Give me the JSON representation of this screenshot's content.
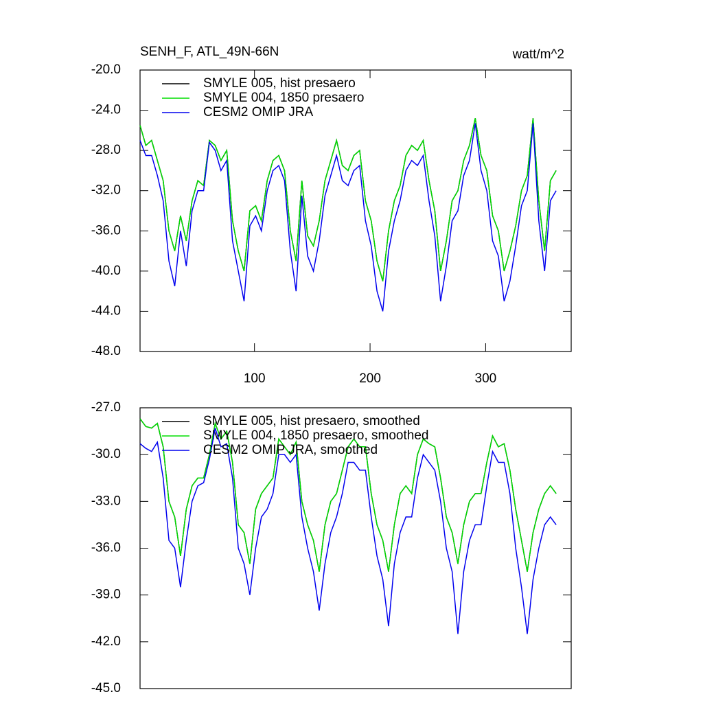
{
  "chart_data": [
    {
      "type": "line",
      "title": "SENH_F, ATL_49N-66N",
      "units": "watt/m^2",
      "xlim": [
        1,
        374
      ],
      "xticks": [
        100,
        200,
        300
      ],
      "ylim": [
        -48,
        -20
      ],
      "yticks": [
        {
          "value": -20,
          "label": "-20.0"
        },
        {
          "value": -24,
          "label": "-24.0"
        },
        {
          "value": -28,
          "label": "-28.0"
        },
        {
          "value": -32,
          "label": "-32.0"
        },
        {
          "value": -36,
          "label": "-36.0"
        },
        {
          "value": -40,
          "label": "-40.0"
        },
        {
          "value": -44,
          "label": "-44.0"
        },
        {
          "value": -48,
          "label": "-48.0"
        }
      ],
      "x": [
        1,
        6,
        11,
        16,
        21,
        26,
        31,
        36,
        41,
        46,
        51,
        56,
        61,
        66,
        71,
        76,
        81,
        86,
        91,
        96,
        101,
        106,
        111,
        116,
        121,
        126,
        131,
        136,
        141,
        146,
        151,
        156,
        161,
        166,
        171,
        176,
        181,
        186,
        191,
        196,
        201,
        206,
        211,
        216,
        221,
        226,
        231,
        236,
        241,
        246,
        251,
        256,
        261,
        266,
        271,
        276,
        281,
        286,
        291,
        296,
        301,
        306,
        311,
        316,
        321,
        326,
        331,
        336,
        341,
        346,
        351,
        356,
        361
      ],
      "series": [
        {
          "name": "SMYLE 005, hist presaero",
          "color": "#000000",
          "values": [
            -25.5,
            -27.5,
            -27.0,
            -29.0,
            -31.0,
            -36.0,
            -38.0,
            -34.5,
            -37.0,
            -33.0,
            -31.0,
            -31.5,
            -27.0,
            -27.5,
            -29.0,
            -28.0,
            -35.0,
            -38.0,
            -40.0,
            -34.0,
            -33.5,
            -35.0,
            -31.0,
            -29.0,
            -28.5,
            -30.0,
            -36.0,
            -39.0,
            -31.0,
            -36.5,
            -37.5,
            -35.0,
            -31.0,
            -29.0,
            -27.0,
            -29.5,
            -30.0,
            -28.5,
            -28.0,
            -33.0,
            -35.0,
            -39.0,
            -41.0,
            -36.0,
            -33.0,
            -31.5,
            -28.5,
            -27.5,
            -28.0,
            -27.0,
            -31.0,
            -34.0,
            -40.0,
            -37.0,
            -33.0,
            -32.0,
            -29.0,
            -27.5,
            -24.8,
            -28.5,
            -30.0,
            -34.5,
            -36.0,
            -40.0,
            -38.0,
            -35.5,
            -32.0,
            -30.5,
            -24.8,
            -33.0,
            -38.0,
            -31.0,
            -30.0
          ]
        },
        {
          "name": "SMYLE 004, 1850 presaero",
          "color": "#00dd00",
          "values": [
            -25.5,
            -27.5,
            -27.0,
            -29.0,
            -31.0,
            -36.0,
            -38.0,
            -34.5,
            -37.0,
            -33.0,
            -31.0,
            -31.5,
            -27.0,
            -27.5,
            -29.0,
            -28.0,
            -35.0,
            -38.0,
            -40.0,
            -34.0,
            -33.5,
            -35.0,
            -31.0,
            -29.0,
            -28.5,
            -30.0,
            -36.0,
            -39.0,
            -31.0,
            -36.5,
            -37.5,
            -35.0,
            -31.0,
            -29.0,
            -27.0,
            -29.5,
            -30.0,
            -28.5,
            -28.0,
            -33.0,
            -35.0,
            -39.0,
            -41.0,
            -36.0,
            -33.0,
            -31.5,
            -28.5,
            -27.5,
            -28.0,
            -27.0,
            -31.0,
            -34.0,
            -40.0,
            -37.0,
            -33.0,
            -32.0,
            -29.0,
            -27.5,
            -24.8,
            -28.5,
            -30.0,
            -34.5,
            -36.0,
            -40.0,
            -38.0,
            -35.5,
            -32.0,
            -30.5,
            -24.8,
            -33.0,
            -38.0,
            -31.0,
            -30.0
          ]
        },
        {
          "name": "CESM2 OMIP JRA",
          "color": "#0000ee",
          "values": [
            -27.0,
            -28.5,
            -28.5,
            -30.5,
            -33.0,
            -39.0,
            -41.5,
            -36.0,
            -39.5,
            -34.0,
            -32.0,
            -32.0,
            -27.2,
            -28.0,
            -30.0,
            -29.0,
            -37.0,
            -40.0,
            -43.0,
            -35.5,
            -34.5,
            -36.0,
            -32.0,
            -30.0,
            -29.5,
            -31.0,
            -38.0,
            -42.0,
            -32.5,
            -38.5,
            -40.0,
            -37.0,
            -32.5,
            -30.5,
            -28.5,
            -31.0,
            -31.5,
            -30.0,
            -29.5,
            -35.0,
            -37.5,
            -42.0,
            -44.0,
            -38.0,
            -35.0,
            -33.0,
            -30.0,
            -29.0,
            -29.5,
            -28.5,
            -33.0,
            -36.5,
            -43.0,
            -39.5,
            -35.0,
            -34.0,
            -30.5,
            -29.0,
            -25.3,
            -30.0,
            -32.0,
            -37.0,
            -38.5,
            -43.0,
            -41.0,
            -37.5,
            -33.5,
            -32.0,
            -25.3,
            -35.0,
            -40.0,
            -33.0,
            -32.0
          ]
        }
      ]
    },
    {
      "type": "line",
      "xlim": [
        1,
        374
      ],
      "ylim": [
        -45,
        -27
      ],
      "yticks": [
        {
          "value": -27,
          "label": "-27.0"
        },
        {
          "value": -30,
          "label": "-30.0"
        },
        {
          "value": -33,
          "label": "-33.0"
        },
        {
          "value": -36,
          "label": "-36.0"
        },
        {
          "value": -39,
          "label": "-39.0"
        },
        {
          "value": -42,
          "label": "-42.0"
        },
        {
          "value": -45,
          "label": "-45.0"
        }
      ],
      "x": [
        1,
        6,
        11,
        16,
        21,
        26,
        31,
        36,
        41,
        46,
        51,
        56,
        61,
        66,
        71,
        76,
        81,
        86,
        91,
        96,
        101,
        106,
        111,
        116,
        121,
        126,
        131,
        136,
        141,
        146,
        151,
        156,
        161,
        166,
        171,
        176,
        181,
        186,
        191,
        196,
        201,
        206,
        211,
        216,
        221,
        226,
        231,
        236,
        241,
        246,
        251,
        256,
        261,
        266,
        271,
        276,
        281,
        286,
        291,
        296,
        301,
        306,
        311,
        316,
        321,
        326,
        331,
        336,
        341,
        346,
        351,
        356,
        361
      ],
      "series": [
        {
          "name": "SMYLE 005, hist presaero, smoothed",
          "color": "#000000",
          "values": [
            -27.7,
            -28.2,
            -28.3,
            -28.0,
            -29.5,
            -33.0,
            -34.0,
            -36.5,
            -33.5,
            -32.0,
            -31.5,
            -31.5,
            -30.0,
            -28.0,
            -29.0,
            -28.5,
            -30.5,
            -34.5,
            -35.0,
            -37.0,
            -33.5,
            -32.5,
            -32.0,
            -31.5,
            -29.0,
            -29.5,
            -30.0,
            -29.2,
            -33.0,
            -34.5,
            -35.5,
            -37.5,
            -34.5,
            -33.0,
            -32.5,
            -31.0,
            -29.5,
            -29.0,
            -29.5,
            -29.5,
            -32.5,
            -34.5,
            -35.5,
            -37.5,
            -34.5,
            -32.5,
            -32.0,
            -32.5,
            -30.0,
            -29.0,
            -29.3,
            -29.5,
            -31.5,
            -34.0,
            -35.0,
            -37.0,
            -34.5,
            -33.0,
            -32.5,
            -32.5,
            -30.5,
            -28.8,
            -29.5,
            -29.3,
            -31.0,
            -33.5,
            -35.5,
            -37.5,
            -35.0,
            -33.5,
            -32.5,
            -32.0,
            -32.5
          ]
        },
        {
          "name": "SMYLE 004, 1850 presaero, smoothed",
          "color": "#00dd00",
          "values": [
            -27.7,
            -28.2,
            -28.3,
            -28.0,
            -29.5,
            -33.0,
            -34.0,
            -36.5,
            -33.5,
            -32.0,
            -31.5,
            -31.5,
            -30.0,
            -28.0,
            -29.0,
            -28.5,
            -30.5,
            -34.5,
            -35.0,
            -37.0,
            -33.5,
            -32.5,
            -32.0,
            -31.5,
            -29.0,
            -29.5,
            -30.0,
            -29.2,
            -33.0,
            -34.5,
            -35.5,
            -37.5,
            -34.5,
            -33.0,
            -32.5,
            -31.0,
            -29.5,
            -29.0,
            -29.5,
            -29.5,
            -32.5,
            -34.5,
            -35.5,
            -37.5,
            -34.5,
            -32.5,
            -32.0,
            -32.5,
            -30.0,
            -29.0,
            -29.3,
            -29.5,
            -31.5,
            -34.0,
            -35.0,
            -37.0,
            -34.5,
            -33.0,
            -32.5,
            -32.5,
            -30.5,
            -28.8,
            -29.5,
            -29.3,
            -31.0,
            -33.5,
            -35.5,
            -37.5,
            -35.0,
            -33.5,
            -32.5,
            -32.0,
            -32.5
          ]
        },
        {
          "name": "CESM2 OMIP JRA, smoothed",
          "color": "#0000ee",
          "values": [
            -29.3,
            -29.6,
            -29.8,
            -29.2,
            -31.5,
            -35.5,
            -36.0,
            -38.5,
            -35.5,
            -33.0,
            -32.0,
            -31.8,
            -30.3,
            -28.3,
            -29.5,
            -29.3,
            -31.5,
            -36.0,
            -37.0,
            -39.0,
            -36.0,
            -34.0,
            -33.5,
            -32.5,
            -30.0,
            -30.0,
            -30.5,
            -30.0,
            -34.0,
            -36.0,
            -37.5,
            -40.0,
            -37.0,
            -35.0,
            -34.0,
            -32.5,
            -30.5,
            -30.5,
            -31.0,
            -31.0,
            -34.0,
            -36.5,
            -38.0,
            -41.0,
            -37.0,
            -35.0,
            -34.0,
            -34.0,
            -31.5,
            -30.0,
            -30.5,
            -31.0,
            -33.0,
            -36.0,
            -37.5,
            -41.5,
            -37.5,
            -35.5,
            -34.5,
            -34.5,
            -32.0,
            -29.8,
            -30.5,
            -30.5,
            -32.5,
            -36.0,
            -38.5,
            -41.5,
            -38.0,
            -36.0,
            -34.5,
            -34.0,
            -34.5
          ]
        }
      ]
    }
  ]
}
